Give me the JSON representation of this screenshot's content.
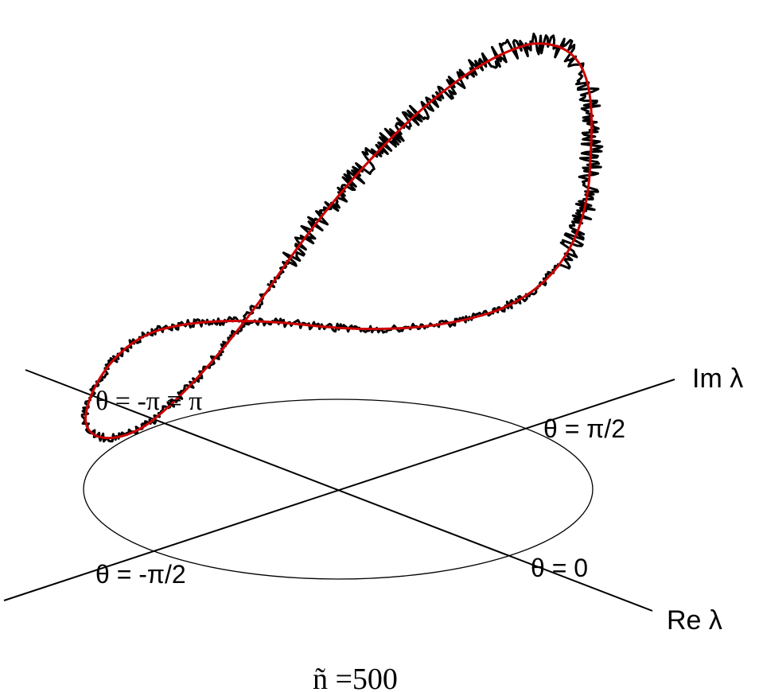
{
  "diagram": {
    "axes": {
      "re_label": "Re λ",
      "im_label": "Im λ"
    },
    "theta_labels": {
      "pi": "θ = -π ≡ π",
      "half_pi": "θ = π/2",
      "minus_half_pi": "θ = -π/2",
      "zero": "θ = 0"
    },
    "caption": "ñ =500",
    "colors": {
      "noisy_curve": "#000000",
      "smooth_curve": "#cc0000",
      "axes": "#000000",
      "ellipse": "#000000"
    }
  }
}
